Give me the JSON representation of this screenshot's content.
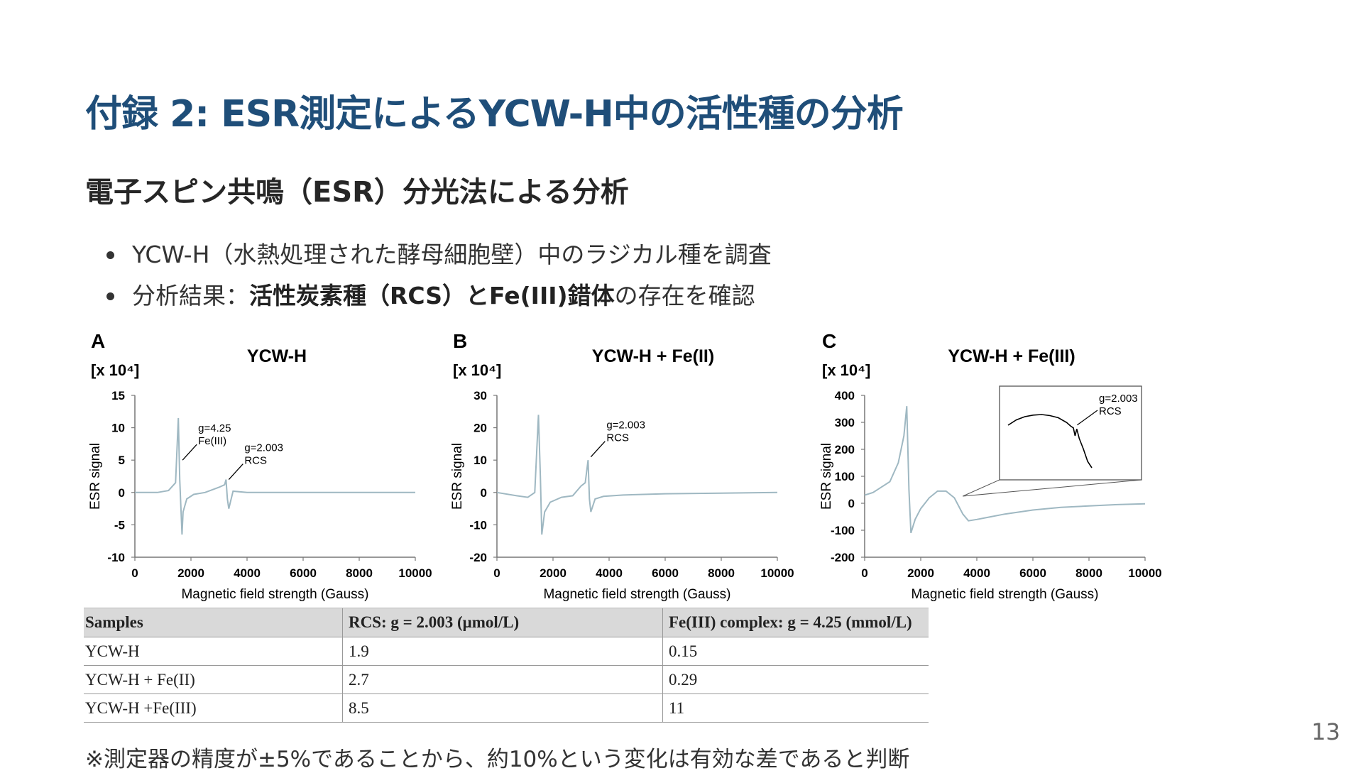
{
  "slide": {
    "title": "付録 2: ESR測定によるYCW-H中の活性種の分析",
    "subtitle": "電子スピン共鳴（ESR）分光法による分析",
    "bullets": [
      {
        "text": "YCW-H（水熱処理された酵母細胞壁）中のラジカル種を調査"
      },
      {
        "pre": "分析結果：",
        "bold": "活性炭素種（RCS）とFe(III)錯体",
        "post": "の存在を確認"
      }
    ],
    "note": "※測定器の精度が±5%であることから、約10%という変化は有効な差であると判断",
    "page_number": "13"
  },
  "chart_data": [
    {
      "type": "line",
      "panel_label": "A",
      "title": "YCW-H",
      "unit": "[x 10⁴]",
      "xlabel": "Magnetic field strength (Gauss)",
      "ylabel": "ESR signal",
      "xlim": [
        0,
        10000
      ],
      "ylim": [
        -10,
        15
      ],
      "xticks": [
        "0",
        "2000",
        "4000",
        "6000",
        "8000",
        "10000"
      ],
      "yticks": [
        "15",
        "10",
        "5",
        "0",
        "-5",
        "-10"
      ],
      "series": [
        {
          "color": "#9fb8c2",
          "x": [
            0,
            800,
            1200,
            1450,
            1550,
            1600,
            1680,
            1720,
            1850,
            2100,
            2500,
            3000,
            3200,
            3250,
            3300,
            3350,
            3500,
            4000,
            6000,
            8000,
            10000
          ],
          "y": [
            0,
            0,
            0.3,
            1.5,
            11.5,
            2,
            -6.5,
            -3,
            -1,
            -0.3,
            0,
            0.8,
            1.2,
            2,
            -1,
            -2.5,
            0.2,
            0,
            0,
            0,
            0
          ]
        }
      ],
      "annotations": [
        {
          "text": [
            "g=4.25",
            "Fe(III)"
          ],
          "x": 1700,
          "y": 5
        },
        {
          "text": [
            "g=2.003",
            "RCS"
          ],
          "x": 3350,
          "y": 2
        }
      ]
    },
    {
      "type": "line",
      "panel_label": "B",
      "title": "YCW-H + Fe(II)",
      "unit": "[x 10⁴]",
      "xlabel": "Magnetic field strength (Gauss)",
      "ylabel": "ESR signal",
      "xlim": [
        0,
        10000
      ],
      "ylim": [
        -20,
        30
      ],
      "xticks": [
        "0",
        "2000",
        "4000",
        "6000",
        "8000",
        "10000"
      ],
      "yticks": [
        "30",
        "20",
        "10",
        "0",
        "-10",
        "-20"
      ],
      "series": [
        {
          "color": "#9fb8c2",
          "x": [
            0,
            700,
            1100,
            1350,
            1480,
            1550,
            1600,
            1700,
            1900,
            2300,
            2700,
            3000,
            3150,
            3250,
            3300,
            3350,
            3500,
            3800,
            4500,
            6000,
            8000,
            10000
          ],
          "y": [
            0,
            -1,
            -1.5,
            0,
            24,
            5,
            -13,
            -6,
            -3,
            -1.5,
            -1,
            2,
            3,
            10,
            -2,
            -6,
            -2,
            -1.2,
            -0.8,
            -0.4,
            -0.2,
            0
          ]
        }
      ],
      "annotations": [
        {
          "text": [
            "g=2.003",
            "RCS"
          ],
          "x": 3350,
          "y": 11
        }
      ]
    },
    {
      "type": "line",
      "panel_label": "C",
      "title": "YCW-H + Fe(III)",
      "unit": "[x 10⁴]",
      "xlabel": "Magnetic field strength (Gauss)",
      "ylabel": "ESR signal",
      "xlim": [
        0,
        10000
      ],
      "ylim": [
        -200,
        400
      ],
      "xticks": [
        "0",
        "2000",
        "4000",
        "6000",
        "8000",
        "10000"
      ],
      "yticks": [
        "400",
        "300",
        "200",
        "100",
        "0",
        "-100",
        "-200"
      ],
      "series": [
        {
          "color": "#9fb8c2",
          "x": [
            0,
            300,
            600,
            900,
            1200,
            1400,
            1500,
            1580,
            1650,
            1800,
            2000,
            2300,
            2600,
            2900,
            3200,
            3500,
            3700,
            4000,
            5000,
            6000,
            7000,
            8000,
            9000,
            10000
          ],
          "y": [
            30,
            40,
            60,
            80,
            150,
            250,
            360,
            50,
            -110,
            -60,
            -20,
            20,
            45,
            45,
            20,
            -40,
            -65,
            -60,
            -40,
            -25,
            -15,
            -10,
            -5,
            -2
          ]
        }
      ],
      "inset": {
        "series": {
          "x": [
            0,
            10,
            20,
            30,
            40,
            50,
            60,
            70,
            75,
            78,
            80,
            82,
            85,
            90,
            95,
            100
          ],
          "y": [
            80,
            90,
            96,
            99,
            100,
            98,
            94,
            85,
            78,
            75,
            60,
            73,
            55,
            35,
            12,
            0
          ]
        },
        "annotation": [
          "g=2.003",
          "RCS"
        ]
      }
    }
  ],
  "table": {
    "headers": [
      "Samples",
      "RCS: g = 2.003 (μmol/L)",
      "Fe(III) complex: g = 4.25 (mmol/L)"
    ],
    "rows": [
      [
        "YCW-H",
        "1.9",
        "0.15"
      ],
      [
        "YCW-H + Fe(II)",
        "2.7",
        "0.29"
      ],
      [
        "YCW-H +Fe(III)",
        "8.5",
        "11"
      ]
    ]
  }
}
